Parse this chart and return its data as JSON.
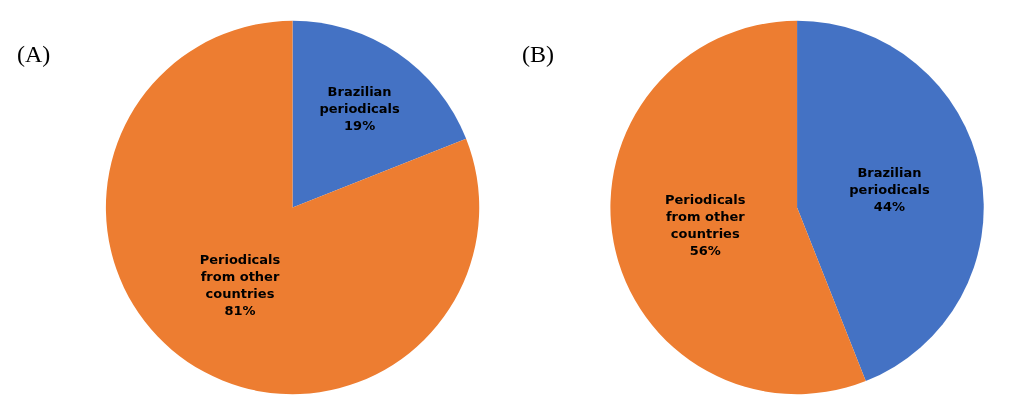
{
  "chart_data": [
    {
      "type": "pie",
      "title": "(A)",
      "categories": [
        "Brazilian periodicals",
        "Periodicals from other countries"
      ],
      "values": [
        19,
        81
      ],
      "value_labels": [
        "19%",
        "81%"
      ],
      "colors": [
        "#4472c4",
        "#ed7d31"
      ],
      "legend": false
    },
    {
      "type": "pie",
      "title": "(B)",
      "categories": [
        "Brazilian periodicals",
        "Periodicals from other countries"
      ],
      "values": [
        44,
        56
      ],
      "value_labels": [
        "44%",
        "56%"
      ],
      "colors": [
        "#4472c4",
        "#ed7d31"
      ],
      "legend": false
    }
  ]
}
